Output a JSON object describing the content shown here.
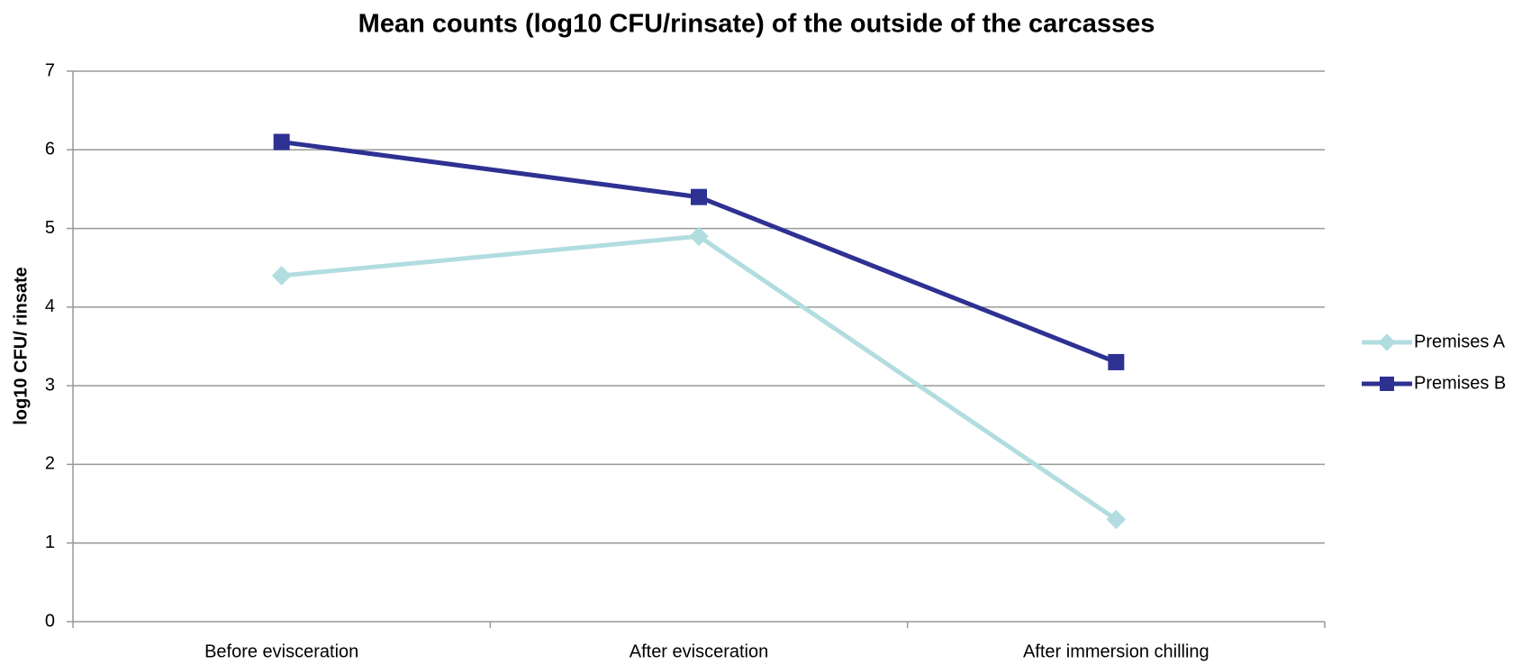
{
  "chart_data": {
    "type": "line",
    "title": "Mean counts (log10 CFU/rinsate) of the outside of the carcasses",
    "y_label": "log10 CFU/ rinsate",
    "categories": [
      "Before evisceration",
      "After evisceration",
      "After immersion chilling"
    ],
    "series": [
      {
        "name": "Premises A",
        "color": "#b2dde0",
        "marker": "diamond",
        "values": [
          4.4,
          4.9,
          1.3
        ]
      },
      {
        "name": "Premises B",
        "color": "#2e3192",
        "marker": "square",
        "values": [
          6.1,
          5.4,
          3.3
        ]
      }
    ],
    "ylim": [
      0,
      7
    ],
    "yticks": [
      0,
      1,
      2,
      3,
      4,
      5,
      6,
      7
    ],
    "grid": true,
    "legend": "right"
  }
}
